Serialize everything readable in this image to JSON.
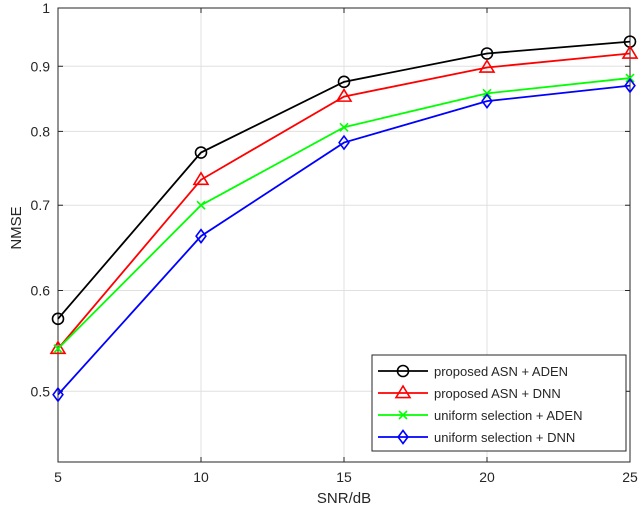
{
  "chart_data": {
    "type": "line",
    "xlabel": "SNR/dB",
    "ylabel": "NMSE",
    "x": [
      5,
      10,
      15,
      20,
      25
    ],
    "xlim": [
      5,
      25
    ],
    "ylim": [
      0.44,
      1
    ],
    "yscale": "log",
    "xticks": [
      "5",
      "10",
      "15",
      "20",
      "25"
    ],
    "yticks": [
      {
        "value": 0.5,
        "label": "0.5"
      },
      {
        "value": 0.6,
        "label": "0.6"
      },
      {
        "value": 0.7,
        "label": "0.7"
      },
      {
        "value": 0.8,
        "label": "0.8"
      },
      {
        "value": 0.9,
        "label": "0.9"
      },
      {
        "value": 1.0,
        "label": "1"
      }
    ],
    "grid": true,
    "legend_position": "bottom-right",
    "series": [
      {
        "name": "proposed ASN + ADEN",
        "values": [
          0.57,
          0.77,
          0.875,
          0.921,
          0.941
        ],
        "color": "#000000",
        "marker": "circle"
      },
      {
        "name": "proposed ASN + DNN",
        "values": [
          0.54,
          0.733,
          0.852,
          0.898,
          0.921
        ],
        "color": "#ff0000",
        "marker": "triangle"
      },
      {
        "name": "uniform selection + ADEN",
        "values": [
          0.54,
          0.7,
          0.806,
          0.857,
          0.881
        ],
        "color": "#00ff00",
        "marker": "x"
      },
      {
        "name": "uniform selection + DNN",
        "values": [
          0.497,
          0.662,
          0.784,
          0.845,
          0.869
        ],
        "color": "#0000ff",
        "marker": "diamond"
      }
    ]
  }
}
